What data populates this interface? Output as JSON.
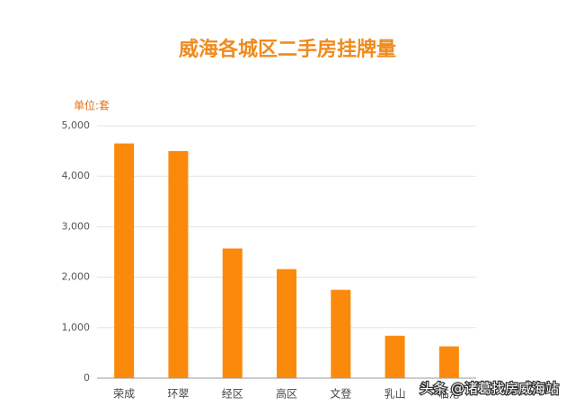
{
  "chart_data": {
    "type": "bar",
    "title": "威海各城区二手房挂牌量",
    "y_label": "单位:套",
    "categories": [
      "荣成",
      "环翠",
      "经区",
      "高区",
      "文登",
      "乳山",
      "临港"
    ],
    "values": [
      4650,
      4500,
      2570,
      2160,
      1750,
      840,
      630
    ],
    "color": "#fb8a0c",
    "ylim": [
      0,
      5000
    ],
    "yticks": [
      0,
      {
        "value": 1000,
        "label": "1,000"
      },
      {
        "value": 2000,
        "label": "2,000"
      },
      {
        "value": 3000,
        "label": "3,000"
      },
      {
        "value": 4000,
        "label": "4,000"
      },
      {
        "value": 5000,
        "label": "5,000"
      }
    ],
    "grid": true,
    "annotation": "头条 @诸葛找房威海站"
  }
}
